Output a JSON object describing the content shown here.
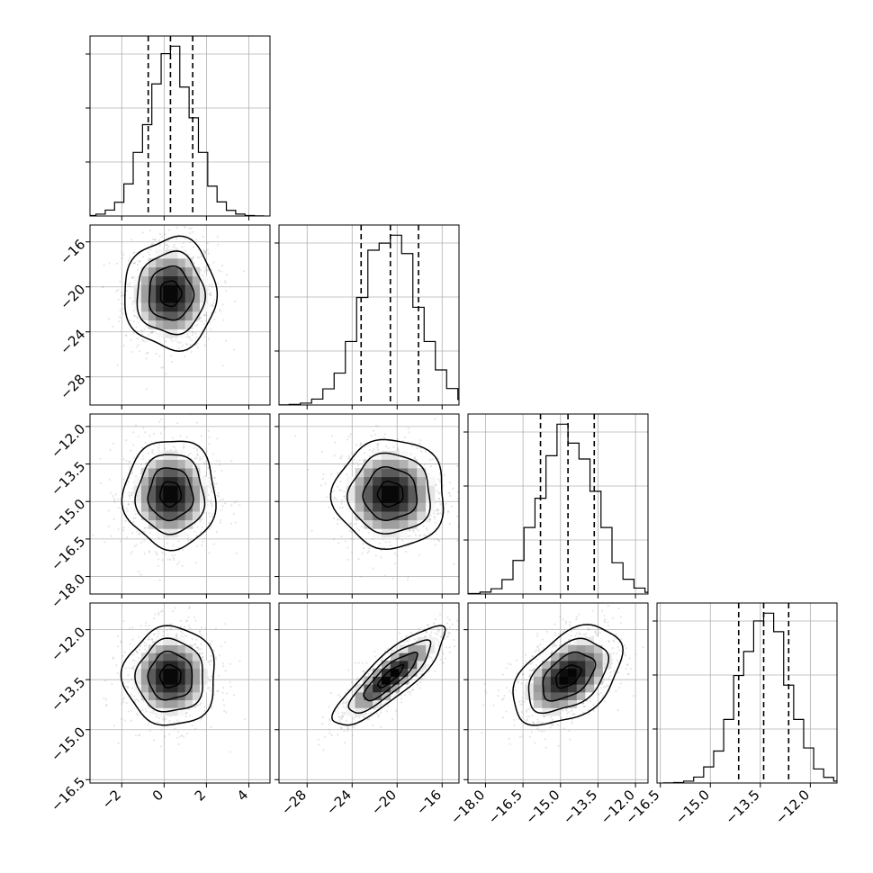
{
  "chart_data": {
    "type": "corner",
    "parameters": [
      {
        "index": 0,
        "mean": 0.3,
        "sd": 1.1,
        "lim": [
          -3.5,
          5.0
        ],
        "ticks": [
          -2,
          0,
          2,
          4
        ],
        "tick_labels": [
          "−2",
          "0",
          "2",
          "4"
        ],
        "quantiles": [
          -0.75,
          0.3,
          1.35
        ]
      },
      {
        "index": 1,
        "mean": -20.6,
        "sd": 2.5,
        "lim": [
          -30.5,
          -14.5
        ],
        "ticks": [
          -28,
          -24,
          -20,
          -16
        ],
        "tick_labels": [
          "−28",
          "−24",
          "−20",
          "−16"
        ],
        "quantiles": [
          -23.2,
          -20.6,
          -18.1
        ]
      },
      {
        "index": 2,
        "mean": -14.7,
        "sd": 1.1,
        "lim": [
          -18.7,
          -11.5
        ],
        "ticks": [
          -18.0,
          -16.5,
          -15.0,
          -13.5,
          -12.0
        ],
        "tick_labels": [
          "−18.0",
          "−16.5",
          "−15.0",
          "−13.5",
          "−12.0"
        ],
        "quantiles": [
          -15.8,
          -14.7,
          -13.65
        ]
      },
      {
        "index": 3,
        "mean": -13.4,
        "sd": 0.75,
        "lim": [
          -16.6,
          -11.2
        ],
        "ticks": [
          -16.5,
          -15.0,
          -13.5,
          -12.0
        ],
        "tick_labels": [
          "−16.5",
          "−15.0",
          "−13.5",
          "−12.0"
        ],
        "quantiles": [
          -14.15,
          -13.4,
          -12.65
        ]
      }
    ],
    "correlations": [
      {
        "a": 0,
        "b": 1,
        "rho": 0.0
      },
      {
        "a": 0,
        "b": 2,
        "rho": 0.0
      },
      {
        "a": 0,
        "b": 3,
        "rho": 0.0
      },
      {
        "a": 1,
        "b": 2,
        "rho": 0.0
      },
      {
        "a": 1,
        "b": 3,
        "rho": 0.85
      },
      {
        "a": 2,
        "b": 3,
        "rho": 0.45
      }
    ],
    "histogram_bins": 20,
    "contour_levels_sigma": [
      0.5,
      1.0,
      1.5,
      2.0
    ],
    "grid": true,
    "colors": {
      "lines": "#000000",
      "points": "#9a9a9a",
      "grid": "#b0b0b0",
      "density_dark": "#000000",
      "density_light": "#ffffff"
    }
  }
}
